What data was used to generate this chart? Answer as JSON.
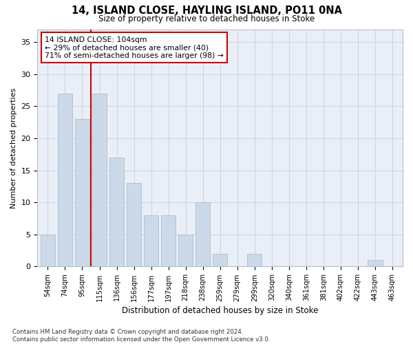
{
  "title": "14, ISLAND CLOSE, HAYLING ISLAND, PO11 0NA",
  "subtitle": "Size of property relative to detached houses in Stoke",
  "xlabel": "Distribution of detached houses by size in Stoke",
  "ylabel": "Number of detached properties",
  "categories": [
    "54sqm",
    "74sqm",
    "95sqm",
    "115sqm",
    "136sqm",
    "156sqm",
    "177sqm",
    "197sqm",
    "218sqm",
    "238sqm",
    "259sqm",
    "279sqm",
    "299sqm",
    "320sqm",
    "340sqm",
    "361sqm",
    "381sqm",
    "402sqm",
    "422sqm",
    "443sqm",
    "463sqm"
  ],
  "values": [
    5,
    27,
    23,
    27,
    17,
    13,
    8,
    8,
    5,
    10,
    2,
    0,
    2,
    0,
    0,
    0,
    0,
    0,
    0,
    1,
    0
  ],
  "bar_color": "#ccd9e8",
  "bar_edge_color": "#a8bece",
  "redline_x": 2.5,
  "annotation_text": "14 ISLAND CLOSE: 104sqm\n← 29% of detached houses are smaller (40)\n71% of semi-detached houses are larger (98) →",
  "annotation_box_color": "#ffffff",
  "annotation_box_edge_color": "#cc0000",
  "redline_color": "#cc0000",
  "ylim": [
    0,
    37
  ],
  "yticks": [
    0,
    5,
    10,
    15,
    20,
    25,
    30,
    35
  ],
  "footer": "Contains HM Land Registry data © Crown copyright and database right 2024.\nContains public sector information licensed under the Open Government Licence v3.0.",
  "grid_color": "#ccd6e4",
  "bg_color": "#eaeff7"
}
